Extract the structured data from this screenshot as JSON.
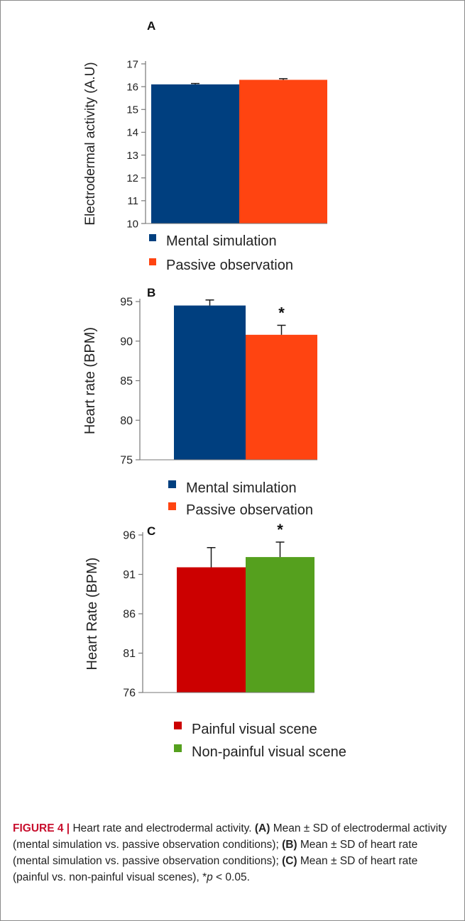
{
  "chart_data": [
    {
      "type": "bar",
      "panel_label": "A",
      "ylabel": "Electrodermal activity (A.U)",
      "ylim": [
        10,
        17
      ],
      "yticks": [
        10,
        11,
        12,
        13,
        14,
        15,
        16,
        17
      ],
      "categories": [
        "Mental simulation",
        "Passive observation"
      ],
      "values": [
        16.1,
        16.3
      ],
      "errors": [
        0.04,
        0.05
      ],
      "significance": [
        "",
        ""
      ],
      "colors": [
        "#003f7f",
        "#ff4411"
      ],
      "legend": [
        "Mental simulation",
        "Passive observation"
      ],
      "legend_placement": "bottom"
    },
    {
      "type": "bar",
      "panel_label": "B",
      "ylabel": "Heart rate (BPM)",
      "ylim": [
        75,
        95
      ],
      "yticks": [
        75,
        80,
        85,
        90,
        95
      ],
      "categories": [
        "Mental simulation",
        "Passive observation"
      ],
      "values": [
        94.5,
        90.8
      ],
      "errors": [
        0.7,
        1.2
      ],
      "significance": [
        "",
        "*"
      ],
      "colors": [
        "#003f7f",
        "#ff4411"
      ],
      "legend": [
        "Mental simulation",
        "Passive observation"
      ],
      "legend_placement": "bottom"
    },
    {
      "type": "bar",
      "panel_label": "C",
      "ylabel": "Heart Rate (BPM)",
      "ylim": [
        76,
        96
      ],
      "yticks": [
        76,
        81,
        86,
        91,
        96
      ],
      "categories": [
        "Painful visual scene",
        "Non-painful visual scene"
      ],
      "values": [
        91.9,
        93.2
      ],
      "errors": [
        2.5,
        1.9
      ],
      "significance": [
        "",
        "*"
      ],
      "colors": [
        "#cc0000",
        "#55a01e"
      ],
      "legend": [
        "Painful visual scene",
        "Non-painful visual scene"
      ],
      "legend_placement": "bottom"
    }
  ],
  "caption": {
    "head": "FIGURE 4 |",
    "title": " Heart rate and electrodermal activity. ",
    "a_label": "(A)",
    "a_text": " Mean ± SD of electrodermal activity (mental simulation vs. passive observation conditions); ",
    "b_label": "(B)",
    "b_text": " Mean ± SD of heart rate (mental simulation vs. passive observation conditions); ",
    "c_label": "(C)",
    "c_text": " Mean ± SD of heart rate (painful vs. non-painful visual scenes), *",
    "p_symbol": "p",
    "p_text": " < 0.05."
  }
}
